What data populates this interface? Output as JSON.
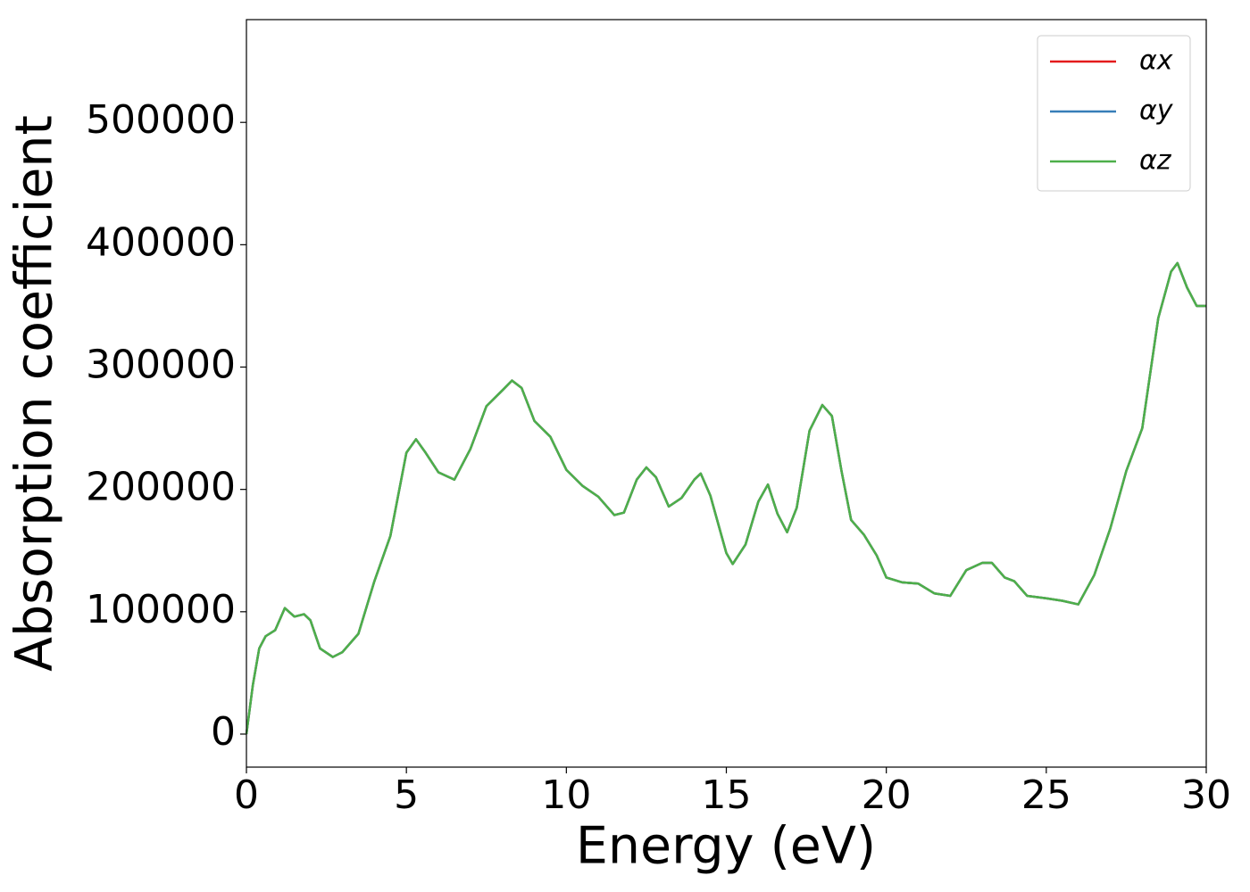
{
  "chart_data": {
    "type": "line",
    "xlabel": "Energy (eV)",
    "ylabel": "Absorption coefficient",
    "x": [
      0,
      0.2,
      0.4,
      0.6,
      0.9,
      1.2,
      1.5,
      1.8,
      2.0,
      2.3,
      2.7,
      3.0,
      3.5,
      4.0,
      4.5,
      5.0,
      5.3,
      5.6,
      6.0,
      6.5,
      7.0,
      7.5,
      8.0,
      8.3,
      8.6,
      9.0,
      9.5,
      10.0,
      10.5,
      11.0,
      11.5,
      11.8,
      12.2,
      12.5,
      12.8,
      13.2,
      13.6,
      14.0,
      14.2,
      14.5,
      15.0,
      15.2,
      15.6,
      16.0,
      16.3,
      16.6,
      16.9,
      17.2,
      17.6,
      18.0,
      18.3,
      18.6,
      18.9,
      19.3,
      19.7,
      20.0,
      20.5,
      21.0,
      21.5,
      22.0,
      22.5,
      23.0,
      23.3,
      23.7,
      24.0,
      24.4,
      25.0,
      25.5,
      26.0,
      26.5,
      27.0,
      27.5,
      28.0,
      28.5,
      28.9,
      29.1,
      29.4,
      29.7,
      30.0
    ],
    "series": [
      {
        "name": "αx",
        "color": "#e41a1c",
        "values": [
          0,
          40000,
          70000,
          80000,
          85000,
          103000,
          96000,
          98000,
          93000,
          70000,
          63000,
          67000,
          82000,
          125000,
          162000,
          230000,
          241000,
          230000,
          214000,
          208000,
          233000,
          268000,
          281000,
          289000,
          283000,
          256000,
          243000,
          216000,
          203000,
          194000,
          179000,
          181000,
          208000,
          218000,
          210000,
          186000,
          193000,
          208000,
          213000,
          195000,
          148000,
          139000,
          155000,
          190000,
          204000,
          180000,
          165000,
          185000,
          248000,
          269000,
          260000,
          215000,
          175000,
          163000,
          146000,
          128000,
          124000,
          123000,
          115000,
          113000,
          134000,
          140000,
          140000,
          128000,
          125000,
          113000,
          111000,
          109000,
          106000,
          130000,
          168000,
          215000,
          250000,
          340000,
          378000,
          385000,
          365000,
          350000,
          350000
        ]
      },
      {
        "name": "αy",
        "color": "#377eb8",
        "values": [
          0,
          40000,
          70000,
          80000,
          85000,
          103000,
          96000,
          98000,
          93000,
          70000,
          63000,
          67000,
          82000,
          125000,
          162000,
          230000,
          241000,
          230000,
          214000,
          208000,
          233000,
          268000,
          281000,
          289000,
          283000,
          256000,
          243000,
          216000,
          203000,
          194000,
          179000,
          181000,
          208000,
          218000,
          210000,
          186000,
          193000,
          208000,
          213000,
          195000,
          148000,
          139000,
          155000,
          190000,
          204000,
          180000,
          165000,
          185000,
          248000,
          269000,
          260000,
          215000,
          175000,
          163000,
          146000,
          128000,
          124000,
          123000,
          115000,
          113000,
          134000,
          140000,
          140000,
          128000,
          125000,
          113000,
          111000,
          109000,
          106000,
          130000,
          168000,
          215000,
          250000,
          340000,
          378000,
          385000,
          365000,
          350000,
          350000
        ]
      },
      {
        "name": "αz",
        "color": "#4daf4a",
        "values": [
          0,
          40000,
          70000,
          80000,
          85000,
          103000,
          96000,
          98000,
          93000,
          70000,
          63000,
          67000,
          82000,
          125000,
          162000,
          230000,
          241000,
          230000,
          214000,
          208000,
          233000,
          268000,
          281000,
          289000,
          283000,
          256000,
          243000,
          216000,
          203000,
          194000,
          179000,
          181000,
          208000,
          218000,
          210000,
          186000,
          193000,
          208000,
          213000,
          195000,
          148000,
          139000,
          155000,
          190000,
          204000,
          180000,
          165000,
          185000,
          248000,
          269000,
          260000,
          215000,
          175000,
          163000,
          146000,
          128000,
          124000,
          123000,
          115000,
          113000,
          134000,
          140000,
          140000,
          128000,
          125000,
          113000,
          111000,
          109000,
          106000,
          130000,
          168000,
          215000,
          250000,
          340000,
          378000,
          385000,
          365000,
          350000,
          350000
        ]
      }
    ],
    "xlim": [
      0,
      30
    ],
    "xticks": [
      0,
      5,
      10,
      15,
      20,
      25,
      30
    ],
    "ylim": [
      -27000,
      584000
    ],
    "yticks": [
      0,
      100000,
      200000,
      300000,
      400000,
      500000
    ],
    "legend": "upper right"
  }
}
